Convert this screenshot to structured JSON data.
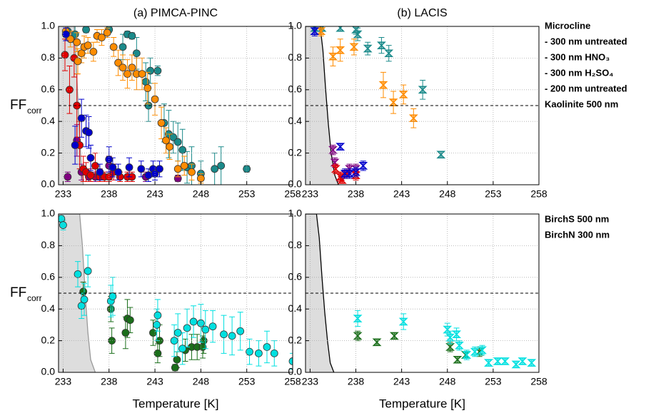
{
  "chart_data": [
    {
      "type": "scatter",
      "title": "(a) PIMCA-PINC",
      "ylabel": "FF",
      "ylabel_subscript": "corr",
      "marker": "circle",
      "xlim": [
        232.5,
        258
      ],
      "xticks": [
        233,
        238,
        243,
        248,
        253,
        258
      ],
      "ylim": [
        0,
        1
      ],
      "yticks": [
        {
          "value": 0,
          "label": "0.0"
        },
        0.2,
        0.4,
        0.6,
        0.8,
        {
          "value": 1,
          "label": "1.0"
        }
      ],
      "grid": true,
      "hline": 0.5,
      "curve": {
        "x": [
          232.5,
          234.2,
          234.4,
          234.6,
          234.8,
          235.0,
          235.2
        ],
        "values": [
          1,
          1,
          0.8,
          0.55,
          0.3,
          0.1,
          0
        ],
        "color": "#999999",
        "fill": "#dddddd"
      },
      "series": [
        {
          "color": "#1a8a8a",
          "x": [
            233.5,
            234.3,
            235.5,
            238,
            239.5,
            240,
            240.5,
            241,
            242,
            242.3,
            242.5,
            243.3,
            244,
            244.5,
            245,
            245.5,
            246,
            246.5,
            247,
            248,
            249.5,
            250.2,
            253
          ],
          "values": [
            0.97,
            0.95,
            0.98,
            0.98,
            0.87,
            0.95,
            0.94,
            0.83,
            0.65,
            0.5,
            0.72,
            0.72,
            0.39,
            0.32,
            0.3,
            0.27,
            0.22,
            0.11,
            0.12,
            0.07,
            0.1,
            0.12,
            0.1
          ],
          "errors": [
            0.03,
            0.05,
            0.02,
            0.02,
            0.08,
            0.02,
            0.02,
            0.1,
            0.12,
            0.1,
            0.08,
            0.03,
            0.12,
            0.15,
            0.1,
            0.12,
            0.13,
            0.1,
            0.12,
            0.08,
            0.1,
            0.12,
            0.02
          ]
        },
        {
          "color": "#800080",
          "x": [
            233.5,
            234.5,
            235,
            235.8,
            236.5,
            237,
            238,
            242,
            245.5
          ],
          "values": [
            0.05,
            0.28,
            0.08,
            0.05,
            0.05,
            0.06,
            0.12,
            0.05,
            0.04
          ],
          "errors": [
            0.03,
            0.1,
            0.05,
            0.03,
            0.03,
            0.04,
            0.06,
            0.03,
            0.02
          ]
        },
        {
          "color": "#e00000",
          "x": [
            233.2,
            233.7,
            234.2,
            234.5,
            234.8,
            235.2,
            235.5,
            236,
            236.5,
            237,
            237.5,
            238,
            238.5,
            239.2,
            240,
            240.5
          ],
          "values": [
            0.82,
            0.6,
            0.8,
            0.5,
            0.25,
            0.1,
            0.08,
            0.06,
            0.12,
            0.05,
            0.05,
            0.05,
            0.08,
            0.05,
            0.05,
            0.05
          ],
          "errors": [
            0.1,
            0.15,
            0.12,
            0.2,
            0.15,
            0.08,
            0.06,
            0.04,
            0.08,
            0.03,
            0.03,
            0.03,
            0.05,
            0.03,
            0.03,
            0.03
          ]
        },
        {
          "color": "#ff8c00",
          "x": [
            233.3,
            233.8,
            234.5,
            234.6,
            235,
            235.3,
            235.7,
            236.3,
            236.7,
            237.2,
            237.8,
            238.5,
            239,
            239.5,
            240,
            240.5,
            241,
            241.6,
            242.2,
            243,
            243.7,
            244.2,
            244.6,
            245.5,
            246.2,
            247,
            248
          ],
          "values": [
            0.97,
            0.92,
            0.9,
            0.78,
            0.83,
            0.87,
            0.88,
            0.84,
            0.94,
            0.93,
            0.96,
            0.87,
            0.77,
            0.74,
            0.7,
            0.74,
            0.7,
            0.7,
            0.61,
            0.54,
            0.39,
            0.28,
            0.24,
            0.1,
            0.12,
            0.08,
            0.04
          ],
          "errors": [
            0.03,
            0.05,
            0.06,
            0.08,
            0.06,
            0.07,
            0.05,
            0.06,
            0.04,
            0.05,
            0.03,
            0.06,
            0.08,
            0.08,
            0.09,
            0.08,
            0.1,
            0.1,
            0.1,
            0.1,
            0.1,
            0.08,
            0.08,
            0.05,
            0.06,
            0.05,
            0.03
          ]
        },
        {
          "color": "#0000cc",
          "x": [
            233.3,
            234.3,
            235,
            235.5,
            235.8,
            236,
            237,
            238,
            238.4,
            239,
            240.2,
            241.5,
            242.3,
            242.8,
            243,
            243.5
          ],
          "values": [
            0.95,
            0.25,
            0.42,
            0.34,
            0.33,
            0.17,
            0.08,
            0.16,
            0.11,
            0.08,
            0.11,
            0.1,
            0.06,
            0.1,
            0.07,
            0.1
          ],
          "errors": [
            0.04,
            0.12,
            0.12,
            0.1,
            0.1,
            0.08,
            0.05,
            0.08,
            0.06,
            0.05,
            0.06,
            0.05,
            0.04,
            0.05,
            0.04,
            0.05
          ]
        }
      ]
    },
    {
      "type": "scatter",
      "title": "(b) LACIS",
      "marker": "hourglass",
      "xlim": [
        232.5,
        258
      ],
      "xticks": [
        233,
        238,
        243,
        248,
        253,
        258
      ],
      "ylim": [
        0,
        1
      ],
      "yticks": [
        {
          "value": 0,
          "label": "0.0"
        },
        0.2,
        0.4,
        0.6,
        0.8,
        {
          "value": 1,
          "label": "1.0"
        }
      ],
      "grid": true,
      "hline": 0.5,
      "legend_title": "Microcline",
      "curve": {
        "x": [
          232.5,
          234.1,
          234.4,
          234.7,
          235.0,
          235.3,
          235.7,
          236.1
        ],
        "values": [
          1,
          1,
          0.85,
          0.6,
          0.38,
          0.2,
          0.06,
          0
        ],
        "color": "#000000",
        "fill": "#dddddd"
      },
      "series": [
        {
          "name": "- 300 nm untreated",
          "color": "#1a8a8a",
          "x": [
            233.5,
            234.3,
            236.3,
            238,
            238.2,
            239.3,
            240.8,
            241.6,
            245.3,
            247.3
          ],
          "values": [
            0.99,
            0.99,
            0.99,
            0.98,
            0.95,
            0.86,
            0.88,
            0.83,
            0.6,
            0.19
          ],
          "errors": [
            0.02,
            0.02,
            0.02,
            0.03,
            0.04,
            0.04,
            0.05,
            0.05,
            0.06,
            0.02
          ]
        },
        {
          "name": "- 300 nm HNO₃",
          "color": "#800080",
          "x": [
            235.5,
            235.7,
            236.3,
            237.3,
            238
          ],
          "values": [
            0.22,
            0.14,
            0.05,
            0.1,
            0.1
          ],
          "errors": [
            0.03,
            0.03,
            0.03,
            0.03,
            0.03
          ]
        },
        {
          "name": "- 300 nm H₂SO₄",
          "color": "#e00000",
          "x": [
            235.8,
            236.3,
            236.5,
            237,
            238
          ],
          "values": [
            0.1,
            0.05,
            0.03,
            0.07,
            0.06
          ],
          "errors": [
            0.03,
            0.03,
            0.02,
            0.03,
            0.03
          ]
        },
        {
          "name": "- 200 nm untreated",
          "color": "#ff8c00",
          "x": [
            234.2,
            235.5,
            236.3,
            237.8,
            241,
            242.1,
            243.2,
            244.3
          ],
          "values": [
            0.97,
            0.81,
            0.85,
            0.87,
            0.63,
            0.52,
            0.57,
            0.42
          ],
          "errors": [
            0.03,
            0.06,
            0.07,
            0.05,
            0.08,
            0.07,
            0.06,
            0.06
          ]
        },
        {
          "name": "Kaolinite 500 nm",
          "color": "#0000cc",
          "x": [
            233.5,
            236.3,
            236.8,
            237.3,
            238,
            238.8
          ],
          "values": [
            0.97,
            0.24,
            0.07,
            0.07,
            0.08,
            0.12
          ],
          "errors": [
            0.03,
            0.02,
            0.03,
            0.03,
            0.03,
            0.03
          ]
        }
      ]
    },
    {
      "type": "scatter",
      "ylabel": "FF",
      "ylabel_subscript": "corr",
      "xlabel": "Temperature [K]",
      "marker": "circle",
      "xlim": [
        232.5,
        258
      ],
      "xticks": [
        233,
        238,
        243,
        248,
        253,
        258
      ],
      "ylim": [
        0,
        1
      ],
      "yticks": [
        {
          "value": 0,
          "label": "0.0"
        },
        0.2,
        0.4,
        0.6,
        0.8,
        {
          "value": 1,
          "label": "1.0"
        }
      ],
      "grid": true,
      "hline": 0.5,
      "curve": {
        "x": [
          232.5,
          234.8,
          235.1,
          235.4,
          235.7,
          236.0,
          236.5
        ],
        "values": [
          1,
          1,
          0.8,
          0.5,
          0.25,
          0.08,
          0
        ],
        "color": "#999999",
        "fill": "#dddddd"
      },
      "series": [
        {
          "color": "#1a6e1a",
          "x": [
            235.2,
            238.2,
            238.3,
            239.8,
            240,
            240.3,
            242.8,
            243.3,
            243.5,
            245.2,
            245.4,
            246.3,
            247,
            247.6,
            248.2,
            248.3
          ],
          "values": [
            0.51,
            0.4,
            0.2,
            0.25,
            0.34,
            0.33,
            0.25,
            0.12,
            0.2,
            0.03,
            0.08,
            0.14,
            0.16,
            0.16,
            0.16,
            0.2
          ],
          "errors": [
            0.06,
            0.08,
            0.08,
            0.1,
            0.12,
            0.08,
            0.08,
            0.06,
            0.1,
            0.02,
            0.05,
            0.07,
            0.08,
            0.08,
            0.07,
            0.08
          ]
        },
        {
          "color": "#00e0e0",
          "x": [
            232.8,
            233,
            234.6,
            235,
            235.3,
            235.7,
            238.2,
            238.4,
            243.2,
            243.3,
            245.1,
            245.5,
            246,
            246.5,
            247.2,
            248,
            248.5,
            249.3,
            250.5,
            251.4,
            252.3,
            253.3,
            254.3,
            255.2,
            256,
            258
          ],
          "values": [
            0.97,
            0.93,
            0.62,
            0.42,
            0.46,
            0.64,
            0.45,
            0.48,
            0.3,
            0.36,
            0.2,
            0.25,
            0.15,
            0.28,
            0.32,
            0.31,
            0.27,
            0.29,
            0.24,
            0.23,
            0.26,
            0.13,
            0.12,
            0.16,
            0.12,
            0.07
          ],
          "errors": [
            0.02,
            0.03,
            0.08,
            0.08,
            0.1,
            0.1,
            0.1,
            0.12,
            0.1,
            0.1,
            0.1,
            0.12,
            0.1,
            0.12,
            0.1,
            0.12,
            0.12,
            0.1,
            0.12,
            0.12,
            0.12,
            0.08,
            0.08,
            0.1,
            0.08,
            0.05
          ]
        }
      ]
    },
    {
      "type": "scatter",
      "xlabel": "Temperature [K]",
      "marker": "hourglass",
      "xlim": [
        232.5,
        258
      ],
      "xticks": [
        233,
        238,
        243,
        248,
        253,
        258
      ],
      "ylim": [
        0,
        1
      ],
      "yticks": [
        {
          "value": 0,
          "label": "0.0"
        },
        0.2,
        0.4,
        0.6,
        0.8,
        {
          "value": 1,
          "label": "1.0"
        }
      ],
      "grid": true,
      "hline": 0.5,
      "curve": {
        "x": [
          232.5,
          233.7,
          234.0,
          234.3,
          234.6,
          234.9,
          235.2,
          235.6
        ],
        "values": [
          1,
          1,
          0.85,
          0.6,
          0.38,
          0.2,
          0.06,
          0
        ],
        "color": "#000000",
        "fill": "#dddddd"
      },
      "series": [
        {
          "name": "BirchS 500 nm",
          "color": "#1a6e1a",
          "x": [
            238.2,
            240.3,
            242.2,
            248.3,
            249.1,
            250,
            251.5
          ],
          "values": [
            0.23,
            0.19,
            0.23,
            0.16,
            0.08,
            0.11,
            0.13
          ],
          "errors": [
            0.03,
            0.02,
            0.02,
            0.03,
            0.02,
            0.02,
            0.03
          ]
        },
        {
          "name": "BirchN 300 nm",
          "color": "#00e0e0",
          "x": [
            238.2,
            243.2,
            248,
            248.3,
            249,
            249.3,
            250.1,
            251,
            251.8,
            252.5,
            253.5,
            254.3,
            255.5,
            256.2,
            257.2
          ],
          "values": [
            0.34,
            0.32,
            0.27,
            0.22,
            0.24,
            0.17,
            0.11,
            0.13,
            0.14,
            0.06,
            0.07,
            0.07,
            0.05,
            0.07,
            0.06
          ],
          "errors": [
            0.05,
            0.05,
            0.04,
            0.04,
            0.04,
            0.03,
            0.03,
            0.03,
            0.03,
            0.02,
            0.02,
            0.02,
            0.02,
            0.02,
            0.02
          ]
        }
      ]
    }
  ]
}
